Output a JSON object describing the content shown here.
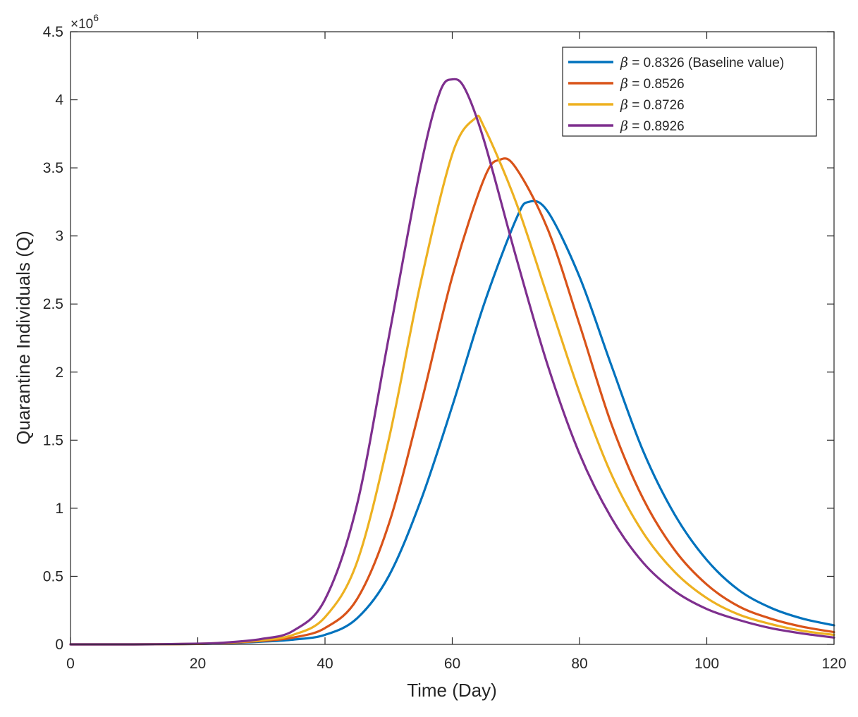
{
  "chart_data": {
    "type": "line",
    "title": "",
    "xlabel": "Time (Day)",
    "ylabel": "Quarantine Individuals (Q)",
    "y_exponent_label": "×10",
    "y_exponent_power": "6",
    "xlim": [
      0,
      120
    ],
    "ylim": [
      0,
      4.5
    ],
    "x_ticks": [
      0,
      20,
      40,
      60,
      80,
      100,
      120
    ],
    "x_tick_labels": [
      "0",
      "20",
      "40",
      "60",
      "80",
      "100",
      "120"
    ],
    "y_ticks": [
      0,
      0.5,
      1,
      1.5,
      2,
      2.5,
      3,
      3.5,
      4,
      4.5
    ],
    "y_tick_labels": [
      "0",
      "0.5",
      "1",
      "1.5",
      "2",
      "2.5",
      "3",
      "3.5",
      "4",
      "4.5"
    ],
    "legend_position": "top-right",
    "legend_symbol": "β",
    "series": [
      {
        "name": "β = 0.8326 (Baseline value)",
        "legend_value": " = 0.8326 (Baseline value)",
        "color": "#0072BD",
        "x": [
          0,
          10,
          20,
          25,
          30,
          35,
          40,
          45,
          50,
          55,
          60,
          65,
          70,
          72,
          75,
          80,
          85,
          90,
          95,
          100,
          105,
          110,
          115,
          120
        ],
        "y": [
          0,
          0,
          0.003,
          0.01,
          0.02,
          0.035,
          0.07,
          0.19,
          0.5,
          1.05,
          1.75,
          2.5,
          3.12,
          3.25,
          3.18,
          2.7,
          2.05,
          1.42,
          0.95,
          0.62,
          0.4,
          0.27,
          0.19,
          0.14
        ]
      },
      {
        "name": "β = 0.8526",
        "legend_value": " = 0.8526",
        "color": "#D95319",
        "x": [
          0,
          10,
          20,
          25,
          30,
          35,
          40,
          45,
          50,
          55,
          60,
          65,
          67.5,
          70,
          75,
          80,
          85,
          90,
          95,
          100,
          105,
          110,
          115,
          120
        ],
        "y": [
          0,
          0,
          0.003,
          0.012,
          0.025,
          0.05,
          0.12,
          0.33,
          0.88,
          1.75,
          2.7,
          3.42,
          3.56,
          3.5,
          3.05,
          2.35,
          1.62,
          1.07,
          0.69,
          0.44,
          0.28,
          0.19,
          0.13,
          0.09
        ]
      },
      {
        "name": "β = 0.8726",
        "legend_value": " = 0.8726",
        "color": "#EDB120",
        "x": [
          0,
          10,
          20,
          25,
          30,
          35,
          40,
          45,
          50,
          55,
          60,
          63.5,
          65,
          70,
          75,
          80,
          85,
          90,
          95,
          100,
          105,
          110,
          115,
          120
        ],
        "y": [
          0,
          0,
          0.004,
          0.014,
          0.03,
          0.07,
          0.2,
          0.6,
          1.5,
          2.65,
          3.6,
          3.86,
          3.8,
          3.25,
          2.55,
          1.85,
          1.25,
          0.82,
          0.53,
          0.34,
          0.22,
          0.15,
          0.1,
          0.07
        ]
      },
      {
        "name": "β = 0.8926",
        "legend_value": " = 0.8926",
        "color": "#7E2F8E",
        "x": [
          0,
          10,
          20,
          25,
          30,
          35,
          40,
          45,
          50,
          55,
          58,
          60,
          62,
          65,
          70,
          75,
          80,
          85,
          90,
          95,
          100,
          105,
          110,
          115,
          120
        ],
        "y": [
          0,
          0,
          0.005,
          0.016,
          0.04,
          0.1,
          0.33,
          1.02,
          2.25,
          3.5,
          4.05,
          4.15,
          4.08,
          3.7,
          2.85,
          2.05,
          1.4,
          0.93,
          0.6,
          0.39,
          0.26,
          0.18,
          0.12,
          0.08,
          0.05
        ]
      }
    ]
  }
}
